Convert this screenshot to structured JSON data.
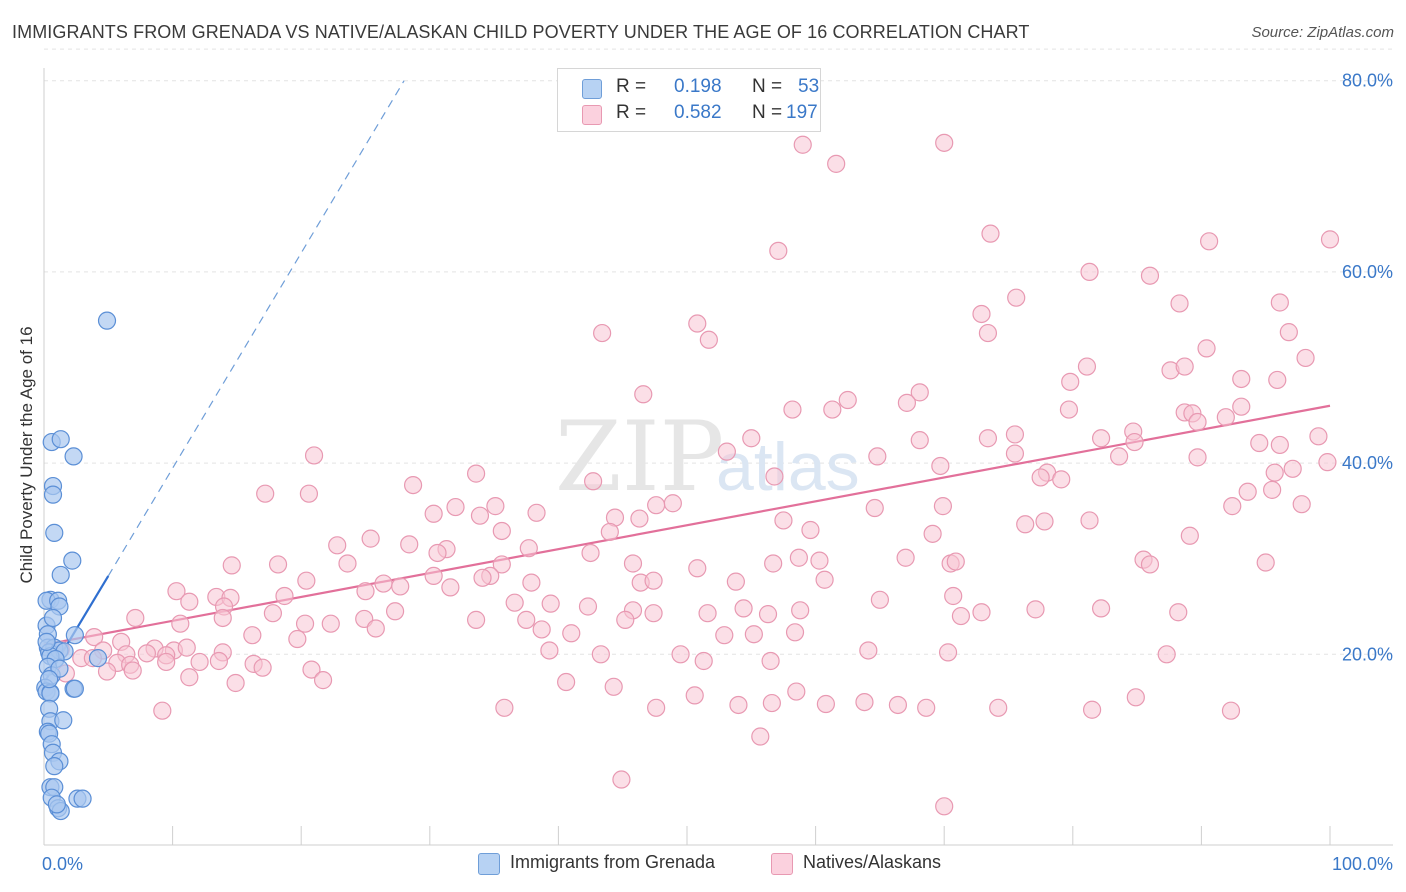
{
  "header": {
    "title": "IMMIGRANTS FROM GRENADA VS NATIVE/ALASKAN CHILD POVERTY UNDER THE AGE OF 16 CORRELATION CHART",
    "source": "Source: ZipAtlas.com"
  },
  "watermark": {
    "zip": "ZIP",
    "atlas": "atlas"
  },
  "legend": {
    "r_label": "R =",
    "n_label": "N =",
    "series": [
      {
        "r": "0.198",
        "n": "53",
        "color": "#a9c8f0",
        "stroke": "#6f9ed8"
      },
      {
        "r": "0.582",
        "n": "197",
        "color": "#f8c4d4",
        "stroke": "#e899b2"
      }
    ]
  },
  "chart_data": {
    "type": "scatter",
    "title": "IMMIGRANTS FROM GRENADA VS NATIVE/ALASKAN CHILD POVERTY UNDER THE AGE OF 16 CORRELATION CHART",
    "xlabel": "",
    "ylabel": "Child Poverty Under the Age of 16",
    "xlim": [
      0,
      100
    ],
    "ylim": [
      0,
      85
    ],
    "x_tick_labels": [
      "0.0%",
      "100.0%"
    ],
    "y_ticks": [
      20,
      40,
      60,
      80
    ],
    "y_tick_labels": [
      "20.0%",
      "40.0%",
      "60.0%",
      "80.0%"
    ],
    "grid": true,
    "legend_position": "top-center",
    "series": [
      {
        "name": "Immigrants from Grenada",
        "color": "#a9c8f0",
        "stroke": "#5b8fd6",
        "trend": {
          "x0": 0.0,
          "y0": 17.0,
          "x1": 5.0,
          "y1": 28.2,
          "dashed_x1": 28.0,
          "dashed_y1": 80.0,
          "color": "#2f6fd0"
        },
        "points": [
          [
            4.9,
            54.9
          ],
          [
            0.6,
            42.2
          ],
          [
            1.3,
            42.5
          ],
          [
            2.3,
            40.7
          ],
          [
            0.7,
            37.6
          ],
          [
            0.7,
            36.7
          ],
          [
            0.8,
            32.7
          ],
          [
            2.2,
            29.8
          ],
          [
            1.3,
            28.3
          ],
          [
            0.5,
            25.7
          ],
          [
            0.2,
            25.6
          ],
          [
            1.1,
            25.6
          ],
          [
            1.2,
            25.0
          ],
          [
            0.2,
            23.0
          ],
          [
            0.7,
            23.8
          ],
          [
            0.3,
            22.1
          ],
          [
            2.4,
            22.0
          ],
          [
            0.3,
            20.7
          ],
          [
            0.8,
            20.7
          ],
          [
            0.4,
            20.2
          ],
          [
            1.2,
            20.4
          ],
          [
            1.6,
            20.3
          ],
          [
            0.5,
            19.8
          ],
          [
            0.9,
            19.5
          ],
          [
            4.2,
            19.6
          ],
          [
            0.3,
            18.7
          ],
          [
            0.6,
            17.8
          ],
          [
            0.1,
            16.5
          ],
          [
            0.2,
            16.1
          ],
          [
            0.5,
            16.0
          ],
          [
            2.3,
            16.4
          ],
          [
            2.4,
            16.4
          ],
          [
            0.5,
            15.9
          ],
          [
            0.4,
            14.3
          ],
          [
            0.5,
            13.0
          ],
          [
            1.5,
            13.1
          ],
          [
            0.3,
            11.9
          ],
          [
            0.4,
            11.7
          ],
          [
            0.6,
            10.6
          ],
          [
            0.7,
            9.7
          ],
          [
            1.2,
            8.8
          ],
          [
            0.8,
            8.3
          ],
          [
            0.5,
            6.1
          ],
          [
            0.8,
            6.1
          ],
          [
            0.6,
            5.0
          ],
          [
            2.6,
            4.9
          ],
          [
            3.0,
            4.9
          ],
          [
            1.1,
            3.9
          ],
          [
            1.3,
            3.6
          ],
          [
            1.0,
            4.3
          ],
          [
            1.2,
            18.5
          ],
          [
            0.4,
            17.4
          ],
          [
            0.2,
            21.3
          ]
        ]
      },
      {
        "name": "Natives/Alaskans",
        "color": "#f8c4d4",
        "stroke": "#e899b2",
        "trend": {
          "x0": 0.0,
          "y0": 21.0,
          "x1": 100.0,
          "y1": 46.0,
          "color": "#e2709a"
        },
        "points": [
          [
            59.0,
            73.3
          ],
          [
            61.6,
            71.3
          ],
          [
            70.0,
            73.5
          ],
          [
            100.0,
            63.4
          ],
          [
            90.6,
            63.2
          ],
          [
            57.1,
            62.2
          ],
          [
            73.6,
            64.0
          ],
          [
            81.3,
            60.0
          ],
          [
            86.0,
            59.6
          ],
          [
            50.8,
            54.6
          ],
          [
            75.6,
            57.3
          ],
          [
            88.3,
            56.7
          ],
          [
            96.1,
            56.8
          ],
          [
            72.9,
            55.6
          ],
          [
            43.4,
            53.6
          ],
          [
            51.7,
            52.9
          ],
          [
            73.4,
            53.6
          ],
          [
            96.8,
            53.7
          ],
          [
            90.4,
            52.0
          ],
          [
            81.1,
            50.1
          ],
          [
            98.1,
            51.0
          ],
          [
            87.6,
            49.7
          ],
          [
            88.7,
            50.1
          ],
          [
            95.9,
            48.7
          ],
          [
            93.1,
            48.8
          ],
          [
            79.8,
            48.5
          ],
          [
            46.6,
            47.2
          ],
          [
            68.1,
            47.4
          ],
          [
            62.5,
            46.6
          ],
          [
            58.2,
            45.6
          ],
          [
            67.1,
            46.3
          ],
          [
            79.7,
            45.6
          ],
          [
            61.3,
            45.6
          ],
          [
            93.1,
            45.9
          ],
          [
            88.7,
            45.3
          ],
          [
            89.3,
            45.2
          ],
          [
            89.7,
            44.3
          ],
          [
            91.9,
            44.8
          ],
          [
            84.7,
            43.3
          ],
          [
            55.0,
            42.6
          ],
          [
            68.1,
            42.4
          ],
          [
            73.4,
            42.6
          ],
          [
            75.5,
            43.0
          ],
          [
            82.2,
            42.6
          ],
          [
            84.8,
            42.2
          ],
          [
            94.5,
            42.1
          ],
          [
            96.1,
            41.9
          ],
          [
            99.1,
            42.8
          ],
          [
            53.1,
            41.2
          ],
          [
            75.5,
            41.0
          ],
          [
            64.8,
            40.7
          ],
          [
            99.8,
            40.1
          ],
          [
            83.6,
            40.7
          ],
          [
            69.7,
            39.7
          ],
          [
            78.0,
            39.0
          ],
          [
            97.1,
            39.4
          ],
          [
            21.0,
            40.8
          ],
          [
            89.7,
            40.6
          ],
          [
            33.6,
            38.9
          ],
          [
            42.7,
            38.1
          ],
          [
            56.8,
            38.6
          ],
          [
            77.5,
            38.5
          ],
          [
            79.1,
            38.3
          ],
          [
            95.7,
            39.0
          ],
          [
            20.6,
            36.8
          ],
          [
            95.5,
            37.2
          ],
          [
            93.6,
            37.0
          ],
          [
            17.2,
            36.8
          ],
          [
            28.7,
            37.7
          ],
          [
            32.0,
            35.4
          ],
          [
            35.1,
            35.5
          ],
          [
            48.9,
            35.8
          ],
          [
            69.9,
            35.5
          ],
          [
            92.4,
            35.5
          ],
          [
            97.8,
            35.7
          ],
          [
            38.3,
            34.8
          ],
          [
            47.6,
            35.6
          ],
          [
            64.6,
            35.3
          ],
          [
            30.3,
            34.7
          ],
          [
            33.9,
            34.5
          ],
          [
            44.4,
            34.3
          ],
          [
            46.3,
            34.2
          ],
          [
            57.5,
            34.0
          ],
          [
            81.3,
            34.0
          ],
          [
            77.8,
            33.9
          ],
          [
            76.3,
            33.6
          ],
          [
            35.6,
            32.9
          ],
          [
            44.0,
            32.8
          ],
          [
            89.1,
            32.4
          ],
          [
            69.1,
            32.6
          ],
          [
            59.6,
            33.0
          ],
          [
            22.8,
            31.4
          ],
          [
            28.4,
            31.5
          ],
          [
            25.4,
            32.1
          ],
          [
            31.3,
            31.0
          ],
          [
            37.7,
            31.1
          ],
          [
            42.5,
            30.6
          ],
          [
            58.7,
            30.1
          ],
          [
            67.0,
            30.1
          ],
          [
            70.5,
            29.5
          ],
          [
            85.5,
            29.9
          ],
          [
            23.6,
            29.5
          ],
          [
            30.6,
            30.6
          ],
          [
            35.6,
            29.4
          ],
          [
            18.2,
            29.4
          ],
          [
            14.6,
            29.3
          ],
          [
            34.7,
            28.2
          ],
          [
            45.8,
            29.5
          ],
          [
            50.8,
            29.0
          ],
          [
            60.3,
            29.8
          ],
          [
            70.9,
            29.7
          ],
          [
            86.0,
            29.4
          ],
          [
            95.0,
            29.6
          ],
          [
            56.7,
            29.5
          ],
          [
            20.4,
            27.7
          ],
          [
            30.3,
            28.2
          ],
          [
            34.1,
            28.0
          ],
          [
            37.9,
            27.5
          ],
          [
            46.4,
            27.5
          ],
          [
            47.4,
            27.7
          ],
          [
            53.8,
            27.6
          ],
          [
            60.7,
            27.8
          ],
          [
            26.4,
            27.4
          ],
          [
            25.0,
            26.6
          ],
          [
            27.7,
            27.1
          ],
          [
            31.6,
            27.0
          ],
          [
            10.3,
            26.6
          ],
          [
            13.4,
            26.0
          ],
          [
            14.5,
            25.9
          ],
          [
            18.7,
            26.1
          ],
          [
            36.6,
            25.4
          ],
          [
            42.3,
            25.0
          ],
          [
            45.8,
            24.6
          ],
          [
            51.6,
            24.3
          ],
          [
            54.4,
            24.8
          ],
          [
            58.8,
            24.6
          ],
          [
            71.3,
            24.0
          ],
          [
            72.9,
            24.4
          ],
          [
            88.2,
            24.4
          ],
          [
            11.3,
            25.5
          ],
          [
            14.0,
            25.0
          ],
          [
            24.9,
            23.7
          ],
          [
            17.8,
            24.3
          ],
          [
            27.3,
            24.5
          ],
          [
            33.6,
            23.6
          ],
          [
            37.5,
            23.6
          ],
          [
            39.4,
            25.3
          ],
          [
            47.4,
            24.3
          ],
          [
            56.3,
            24.2
          ],
          [
            65.0,
            25.7
          ],
          [
            70.7,
            26.1
          ],
          [
            77.1,
            24.7
          ],
          [
            82.2,
            24.8
          ],
          [
            7.1,
            23.8
          ],
          [
            10.6,
            23.2
          ],
          [
            13.9,
            23.8
          ],
          [
            22.3,
            23.2
          ],
          [
            45.2,
            23.6
          ],
          [
            20.3,
            23.2
          ],
          [
            25.8,
            22.7
          ],
          [
            38.7,
            22.6
          ],
          [
            41.0,
            22.2
          ],
          [
            52.9,
            22.0
          ],
          [
            55.2,
            22.1
          ],
          [
            58.4,
            22.3
          ],
          [
            16.2,
            22.0
          ],
          [
            19.7,
            21.6
          ],
          [
            3.9,
            21.8
          ],
          [
            6.0,
            21.3
          ],
          [
            8.6,
            20.6
          ],
          [
            10.1,
            20.4
          ],
          [
            11.1,
            20.7
          ],
          [
            4.6,
            20.4
          ],
          [
            6.4,
            20.0
          ],
          [
            8.0,
            20.1
          ],
          [
            9.5,
            19.9
          ],
          [
            13.9,
            20.2
          ],
          [
            39.3,
            20.4
          ],
          [
            43.3,
            20.0
          ],
          [
            49.5,
            20.0
          ],
          [
            51.3,
            19.3
          ],
          [
            56.5,
            19.3
          ],
          [
            64.1,
            20.4
          ],
          [
            70.3,
            20.2
          ],
          [
            87.3,
            20.0
          ],
          [
            1.3,
            20.5
          ],
          [
            2.9,
            19.6
          ],
          [
            3.8,
            19.6
          ],
          [
            5.7,
            19.1
          ],
          [
            6.7,
            18.9
          ],
          [
            9.5,
            19.2
          ],
          [
            12.1,
            19.2
          ],
          [
            13.6,
            19.3
          ],
          [
            16.3,
            19.0
          ],
          [
            17.0,
            18.6
          ],
          [
            20.8,
            18.4
          ],
          [
            1.7,
            18.0
          ],
          [
            4.9,
            18.2
          ],
          [
            6.9,
            18.3
          ],
          [
            11.3,
            17.6
          ],
          [
            14.9,
            17.0
          ],
          [
            21.7,
            17.3
          ],
          [
            40.6,
            17.1
          ],
          [
            44.3,
            16.6
          ],
          [
            50.6,
            15.7
          ],
          [
            56.6,
            14.9
          ],
          [
            58.5,
            16.1
          ],
          [
            60.8,
            14.8
          ],
          [
            63.8,
            15.0
          ],
          [
            66.4,
            14.7
          ],
          [
            68.6,
            14.4
          ],
          [
            74.2,
            14.4
          ],
          [
            81.5,
            14.2
          ],
          [
            84.9,
            15.5
          ],
          [
            54.0,
            14.7
          ],
          [
            9.2,
            14.1
          ],
          [
            35.8,
            14.4
          ],
          [
            47.6,
            14.4
          ],
          [
            92.3,
            14.1
          ],
          [
            55.7,
            11.4
          ],
          [
            44.9,
            6.9
          ],
          [
            70.0,
            4.1
          ]
        ]
      }
    ]
  },
  "bottom_legend": [
    {
      "label": "Immigrants from Grenada"
    },
    {
      "label": "Natives/Alaskans"
    }
  ]
}
